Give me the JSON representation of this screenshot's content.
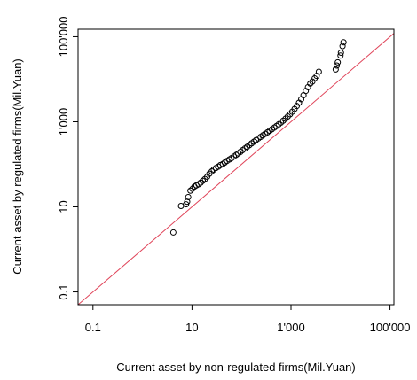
{
  "chart_data": {
    "type": "scatter",
    "title": "",
    "xlabel": "Current asset by non-regulated firms(Mil.Yuan)",
    "ylabel": "Current asset by regulated firms(Mil.Yuan)",
    "x_scale": "log10",
    "y_scale": "log10",
    "xlim": [
      0.05,
      120000
    ],
    "ylim": [
      0.05,
      150000
    ],
    "x_ticks": [
      {
        "value": 0.1,
        "label": "0.1"
      },
      {
        "value": 10,
        "label": "10"
      },
      {
        "value": 1000,
        "label": "1'000"
      },
      {
        "value": 100000,
        "label": "100'000"
      }
    ],
    "y_ticks": [
      {
        "value": 0.1,
        "label": "0.1"
      },
      {
        "value": 10,
        "label": "10"
      },
      {
        "value": 1000,
        "label": "1'000"
      },
      {
        "value": 100000,
        "label": "100'000"
      }
    ],
    "grid": false,
    "legend": "none",
    "reference_line": {
      "type": "y=x",
      "color": "#e0455a"
    },
    "point_color": "#000000",
    "points": [
      [
        4.2,
        2.5
      ],
      [
        6,
        10.5
      ],
      [
        7.6,
        11.5
      ],
      [
        8,
        13.2
      ],
      [
        8.4,
        17
      ],
      [
        9.3,
        24
      ],
      [
        10.2,
        26.5
      ],
      [
        11.2,
        30
      ],
      [
        12.3,
        32
      ],
      [
        13.6,
        34
      ],
      [
        15,
        37
      ],
      [
        16.5,
        41
      ],
      [
        18.3,
        45
      ],
      [
        20.3,
        51
      ],
      [
        22.5,
        60
      ],
      [
        25,
        68
      ],
      [
        27.5,
        75
      ],
      [
        30.5,
        82
      ],
      [
        34,
        88
      ],
      [
        37.5,
        96
      ],
      [
        42,
        102
      ],
      [
        46,
        110
      ],
      [
        51,
        120
      ],
      [
        57,
        130
      ],
      [
        63,
        140
      ],
      [
        70,
        152
      ],
      [
        78,
        166
      ],
      [
        86,
        180
      ],
      [
        95,
        196
      ],
      [
        105,
        215
      ],
      [
        117,
        235
      ],
      [
        130,
        258
      ],
      [
        144,
        282
      ],
      [
        160,
        310
      ],
      [
        178,
        340
      ],
      [
        197,
        372
      ],
      [
        219,
        405
      ],
      [
        243,
        440
      ],
      [
        270,
        480
      ],
      [
        300,
        520
      ],
      [
        335,
        565
      ],
      [
        372,
        615
      ],
      [
        413,
        670
      ],
      [
        460,
        730
      ],
      [
        510,
        795
      ],
      [
        565,
        870
      ],
      [
        628,
        960
      ],
      [
        697,
        1060
      ],
      [
        775,
        1180
      ],
      [
        860,
        1330
      ],
      [
        955,
        1500
      ],
      [
        1060,
        1720
      ],
      [
        1180,
        2000
      ],
      [
        1310,
        2350
      ],
      [
        1450,
        2800
      ],
      [
        1610,
        3400
      ],
      [
        1790,
        4200
      ],
      [
        1990,
        5300
      ],
      [
        2200,
        6500
      ],
      [
        2450,
        7900
      ],
      [
        2700,
        8800
      ],
      [
        3000,
        10500
      ],
      [
        3300,
        12000
      ],
      [
        3650,
        15000
      ],
      [
        8000,
        17000
      ],
      [
        8400,
        21000
      ],
      [
        8800,
        25000
      ],
      [
        10000,
        36000
      ],
      [
        10200,
        42000
      ],
      [
        11000,
        60000
      ],
      [
        11500,
        74000
      ]
    ]
  }
}
